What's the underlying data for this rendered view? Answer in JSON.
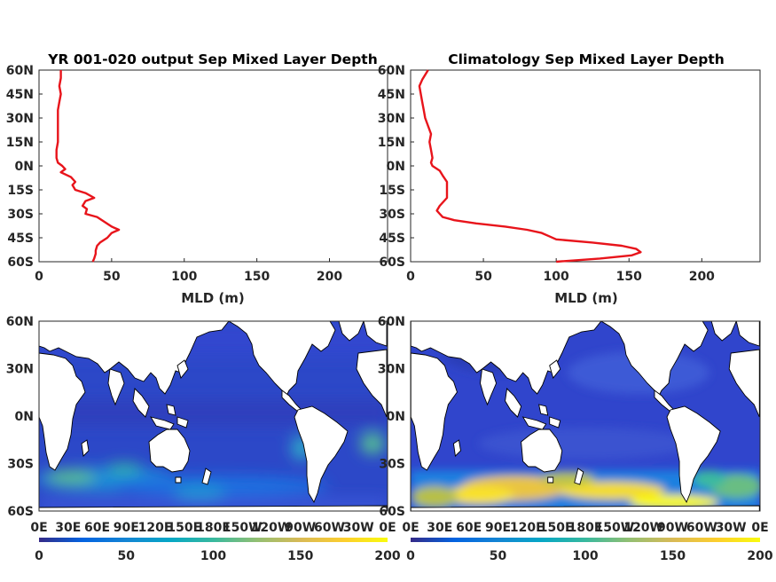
{
  "charts": [
    {
      "type": "line",
      "title": "YR 001-020 output Sep Mixed Layer Depth",
      "xlabel": "MLD (m)",
      "xlim": [
        0,
        240
      ],
      "ylim": [
        -60,
        60
      ],
      "x_ticks": [
        0,
        50,
        100,
        150,
        200
      ],
      "y_ticks": [
        "60N",
        "45N",
        "30N",
        "15N",
        "0N",
        "15S",
        "30S",
        "45S",
        "60S"
      ],
      "series": [
        {
          "color": "#e8141b",
          "lat": [
            60,
            55,
            50,
            45,
            40,
            35,
            30,
            25,
            20,
            15,
            10,
            5,
            2,
            0,
            -2,
            -4,
            -7,
            -10,
            -12,
            -15,
            -17,
            -20,
            -22,
            -25,
            -27,
            -30,
            -32,
            -35,
            -38,
            -40,
            -42,
            -45,
            -48,
            -50,
            -53,
            -55,
            -58,
            -60
          ],
          "mld": [
            15,
            15,
            14,
            15,
            14,
            13,
            13,
            13,
            13,
            13,
            12,
            12,
            13,
            16,
            18,
            15,
            22,
            25,
            23,
            25,
            32,
            38,
            32,
            30,
            33,
            32,
            40,
            45,
            50,
            55,
            50,
            47,
            42,
            40,
            39,
            39,
            38,
            37
          ]
        }
      ]
    },
    {
      "type": "line",
      "title": "Climatology Sep Mixed Layer Depth",
      "xlabel": "MLD (m)",
      "xlim": [
        0,
        240
      ],
      "ylim": [
        -60,
        60
      ],
      "x_ticks": [
        0,
        50,
        100,
        150,
        200
      ],
      "y_ticks": [
        "60N",
        "45N",
        "30N",
        "15N",
        "0N",
        "15S",
        "30S",
        "45S",
        "60S"
      ],
      "series": [
        {
          "color": "#e8141b",
          "lat": [
            60,
            57,
            54,
            50,
            45,
            40,
            35,
            30,
            25,
            20,
            15,
            10,
            5,
            2,
            0,
            -3,
            -6,
            -10,
            -15,
            -20,
            -25,
            -28,
            -30,
            -32,
            -34,
            -36,
            -38,
            -40,
            -42,
            -44,
            -46,
            -48,
            -50,
            -52,
            -54,
            -56,
            -58,
            -60
          ],
          "mld": [
            12,
            10,
            8,
            6,
            7,
            8,
            9,
            10,
            12,
            14,
            13,
            14,
            15,
            14,
            15,
            20,
            22,
            25,
            25,
            25,
            20,
            18,
            20,
            22,
            30,
            45,
            65,
            80,
            90,
            95,
            100,
            125,
            145,
            155,
            158,
            152,
            130,
            100
          ]
        }
      ]
    },
    {
      "type": "heatmap",
      "colormap": "parula",
      "colorbar_ticks": [
        0,
        50,
        100,
        150,
        200
      ],
      "x_ticks": [
        "0E",
        "30E",
        "60E",
        "90E",
        "120E",
        "150E",
        "180E",
        "150W",
        "120W",
        "90W",
        "60W",
        "30W",
        "0E"
      ],
      "y_ticks": [
        "60N",
        "30N",
        "0N",
        "30S",
        "60S"
      ],
      "source": "model"
    },
    {
      "type": "heatmap",
      "colormap": "parula",
      "colorbar_ticks": [
        0,
        50,
        100,
        150,
        200
      ],
      "x_ticks": [
        "0E",
        "30E",
        "60E",
        "90E",
        "120E",
        "150E",
        "180E",
        "150W",
        "120W",
        "90W",
        "60W",
        "30W",
        "0E"
      ],
      "y_ticks": [
        "60N",
        "30N",
        "0N",
        "30S",
        "60S"
      ],
      "source": "climatology"
    }
  ]
}
